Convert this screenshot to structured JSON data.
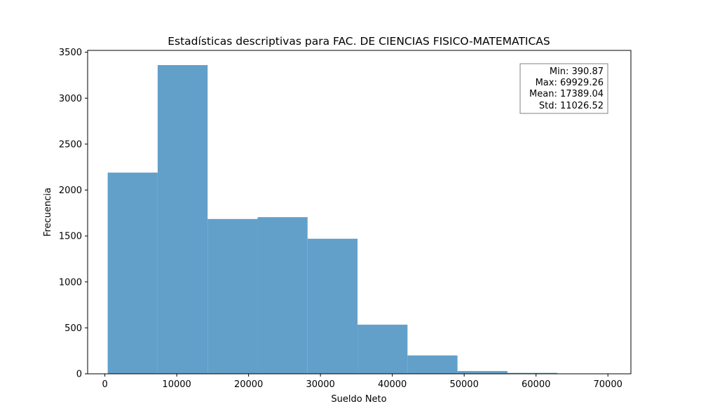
{
  "chart_data": {
    "type": "bar",
    "title": "Estadísticas descriptivas para FAC. DE CIENCIAS FISICO-MATEMATICAS",
    "xlabel": "Sueldo Neto",
    "ylabel": "Frecuencia",
    "xlim": [
      -2400,
      73200
    ],
    "ylim": [
      0,
      3520
    ],
    "xticks": [
      0,
      10000,
      20000,
      30000,
      40000,
      50000,
      60000,
      70000
    ],
    "yticks": [
      0,
      500,
      1000,
      1500,
      2000,
      2500,
      3000,
      3500
    ],
    "bin_edges": [
      390.87,
      7344.71,
      14298.55,
      21252.39,
      28206.23,
      35160.07,
      42113.9,
      49067.74,
      56021.58,
      62975.42,
      69929.26
    ],
    "values": [
      2190,
      3360,
      1685,
      1705,
      1470,
      535,
      200,
      30,
      10,
      3
    ],
    "bar_color": "#62a0ca",
    "grid": false,
    "stats_box": {
      "min": "Min: 390.87",
      "max": "Max: 69929.26",
      "mean": "Mean: 17389.04",
      "std": "Std: 11026.52"
    }
  }
}
